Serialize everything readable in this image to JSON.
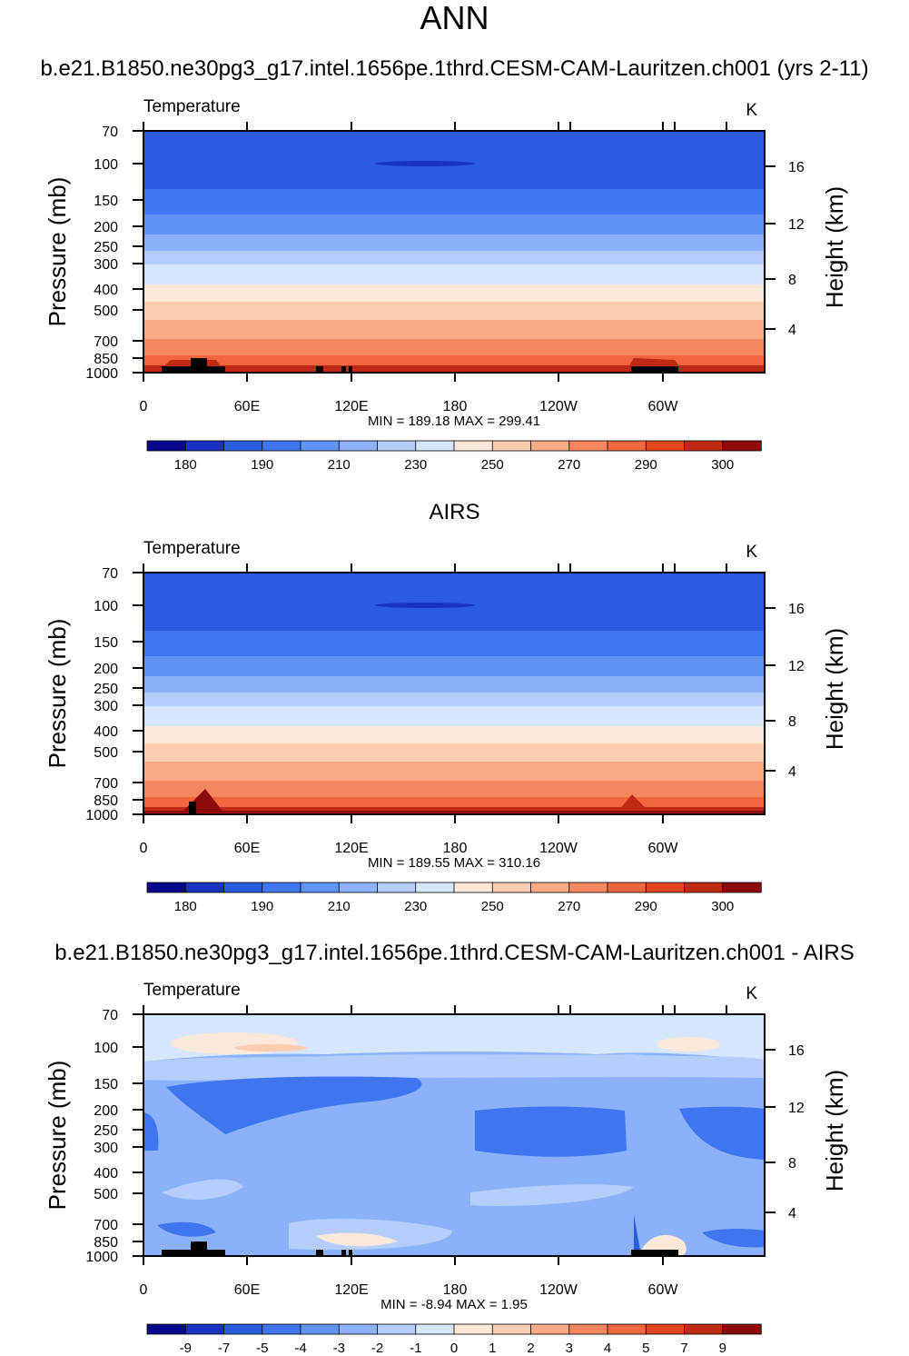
{
  "page_title": "ANN",
  "chart_data": [
    {
      "type": "contour",
      "title": "b.e21.B1850.ne30pg3_g17.intel.1656pe.1thrd.CESM-CAM-Lauritzen.ch001 (yrs 2-11)",
      "left_string": "Temperature",
      "right_string": "K",
      "ylabel": "Pressure (mb)",
      "y2label": "Height (km)",
      "yticks": [
        "70",
        "100",
        "150",
        "200",
        "250",
        "300",
        "400",
        "500",
        "700",
        "850",
        "1000"
      ],
      "y2ticks": [
        "16",
        "12",
        "8",
        "4"
      ],
      "xticks": [
        "0",
        "60E",
        "120E",
        "180",
        "120W",
        "60W"
      ],
      "stats": "MIN = 189.18  MAX = 299.41",
      "min": 189.18,
      "max": 299.41,
      "colorbar": {
        "labels": [
          "180",
          "190",
          "210",
          "230",
          "250",
          "270",
          "290",
          "300"
        ],
        "colors": [
          "#08088f",
          "#1933c0",
          "#2a5ce0",
          "#3f76f0",
          "#5f94f6",
          "#8bb1fa",
          "#b4cdfb",
          "#d6e6fc",
          "#fce8d8",
          "#fbcdb0",
          "#f8aa84",
          "#f5875e",
          "#f2663f",
          "#e3461f",
          "#bf2a12",
          "#8c0a0a"
        ]
      }
    },
    {
      "type": "contour",
      "title": "AIRS",
      "left_string": "Temperature",
      "right_string": "K",
      "ylabel": "Pressure (mb)",
      "y2label": "Height (km)",
      "yticks": [
        "70",
        "100",
        "150",
        "200",
        "250",
        "300",
        "400",
        "500",
        "700",
        "850",
        "1000"
      ],
      "y2ticks": [
        "16",
        "12",
        "8",
        "4"
      ],
      "xticks": [
        "0",
        "60E",
        "120E",
        "180",
        "120W",
        "60W"
      ],
      "stats": "MIN = 189.55  MAX = 310.16",
      "min": 189.55,
      "max": 310.16,
      "colorbar": {
        "labels": [
          "180",
          "190",
          "210",
          "230",
          "250",
          "270",
          "290",
          "300"
        ],
        "colors": [
          "#08088f",
          "#1933c0",
          "#2a5ce0",
          "#3f76f0",
          "#5f94f6",
          "#8bb1fa",
          "#b4cdfb",
          "#d6e6fc",
          "#fce8d8",
          "#fbcdb0",
          "#f8aa84",
          "#f5875e",
          "#f2663f",
          "#e3461f",
          "#bf2a12",
          "#8c0a0a"
        ]
      }
    },
    {
      "type": "contour",
      "title": "b.e21.B1850.ne30pg3_g17.intel.1656pe.1thrd.CESM-CAM-Lauritzen.ch001 - AIRS",
      "left_string": "Temperature",
      "right_string": "K",
      "ylabel": "Pressure (mb)",
      "y2label": "Height (km)",
      "yticks": [
        "70",
        "100",
        "150",
        "200",
        "250",
        "300",
        "400",
        "500",
        "700",
        "850",
        "1000"
      ],
      "y2ticks": [
        "16",
        "12",
        "8",
        "4"
      ],
      "xticks": [
        "0",
        "60E",
        "120E",
        "180",
        "120W",
        "60W"
      ],
      "stats": "MIN =  -8.94  MAX =   1.95",
      "min": -8.94,
      "max": 1.95,
      "colorbar": {
        "labels": [
          "-9",
          "-7",
          "-5",
          "-4",
          "-3",
          "-2",
          "-1",
          "0",
          "1",
          "2",
          "3",
          "4",
          "5",
          "7",
          "9"
        ],
        "colors": [
          "#08088f",
          "#1933c0",
          "#2a5ce0",
          "#3f76f0",
          "#5f94f6",
          "#8bb1fa",
          "#b4cdfb",
          "#d6e6fc",
          "#fce8d8",
          "#fbcdb0",
          "#f8aa84",
          "#f5875e",
          "#f2663f",
          "#e3461f",
          "#bf2a12",
          "#8c0a0a"
        ]
      }
    }
  ]
}
